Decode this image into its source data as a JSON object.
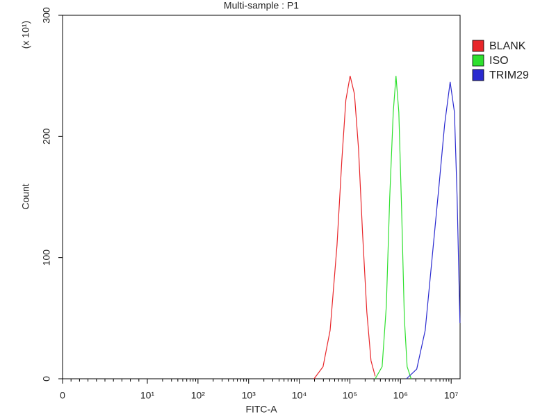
{
  "chart_data": {
    "type": "line",
    "title": "Multi-sample : P1",
    "x_label": "FITC-A",
    "y_label": "Count",
    "y_multiplier": "(x 10¹)",
    "xscale": "biexponential",
    "xlim": [
      0,
      15000000
    ],
    "xticks": [
      0,
      {
        "value": 10,
        "label": "10¹"
      },
      {
        "value": 100,
        "label": "10²"
      },
      {
        "value": 1000,
        "label": "10³"
      },
      {
        "value": 10000,
        "label": "10⁴"
      },
      {
        "value": 100000,
        "label": "10⁵"
      },
      {
        "value": 1000000,
        "label": "10⁶"
      },
      {
        "value": 10000000,
        "label": "10⁷"
      }
    ],
    "ylim": [
      0,
      300
    ],
    "yticks": [
      0,
      100,
      200,
      300
    ],
    "legend": "right",
    "series": [
      {
        "name": "BLANK",
        "color": "#e8262a",
        "x": [
          19600,
          29500,
          40700,
          55600,
          69200,
          83200,
          101000,
          123000,
          148000,
          178000,
          216000,
          261000,
          316000
        ],
        "values": [
          0,
          10,
          40,
          110,
          180,
          230,
          250,
          235,
          190,
          120,
          55,
          15,
          2
        ]
      },
      {
        "name": "ISO",
        "color": "#2ee02e",
        "x": [
          316000,
          433000,
          524000,
          612000,
          718000,
          813000,
          925000,
          1050000,
          1190000,
          1350000,
          1620000
        ],
        "values": [
          0,
          10,
          60,
          150,
          220,
          250,
          220,
          140,
          50,
          10,
          0
        ]
      },
      {
        "name": "TRIM29",
        "color": "#2a2ad0",
        "x": [
          1310000,
          2090000,
          3070000,
          4210000,
          5770000,
          7430000,
          9550000,
          11600000,
          13100000,
          14900000
        ],
        "values": [
          0,
          8,
          40,
          100,
          160,
          210,
          245,
          220,
          150,
          46
        ]
      }
    ]
  }
}
